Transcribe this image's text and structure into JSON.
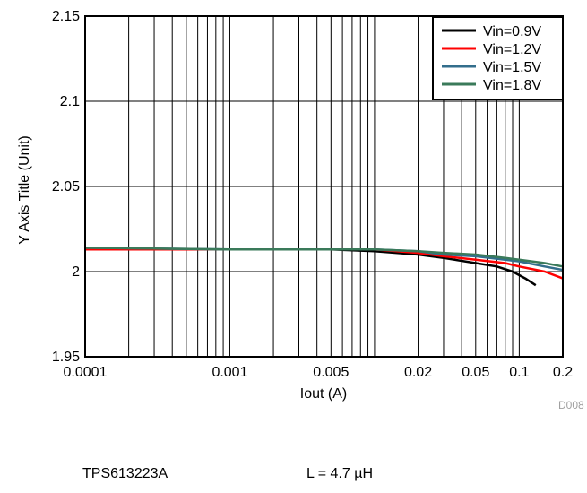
{
  "chart_data": {
    "type": "line",
    "x_scale": "log",
    "xlabel": "Iout (A)",
    "ylabel": "Y Axis Title (Unit)",
    "xlim": [
      0.0001,
      0.2
    ],
    "ylim": [
      1.95,
      2.15
    ],
    "x_ticks": [
      0.0001,
      0.001,
      0.005,
      0.02,
      0.05,
      0.1,
      0.2
    ],
    "x_tick_labels": [
      "0.0001",
      "0.001",
      "0.005",
      "0.02",
      "0.05",
      "0.1",
      "0.2"
    ],
    "y_ticks": [
      1.95,
      2,
      2.05,
      2.1,
      2.15
    ],
    "y_tick_labels": [
      "1.95",
      "2",
      "2.05",
      "2.1",
      "2.15"
    ],
    "grid": true,
    "legend_position": "top-right",
    "watermark": "D008",
    "series": [
      {
        "name": "Vin=0.9V",
        "color": "#000000",
        "x": [
          0.0001,
          0.001,
          0.005,
          0.01,
          0.02,
          0.03,
          0.05,
          0.07,
          0.09,
          0.11,
          0.13
        ],
        "y": [
          2.013,
          2.013,
          2.013,
          2.012,
          2.01,
          2.008,
          2.005,
          2.003,
          2.0,
          1.996,
          1.992
        ]
      },
      {
        "name": "Vin=1.2V",
        "color": "#ff0000",
        "x": [
          0.0001,
          0.001,
          0.005,
          0.01,
          0.02,
          0.03,
          0.05,
          0.08,
          0.1,
          0.15,
          0.2
        ],
        "y": [
          2.013,
          2.013,
          2.013,
          2.013,
          2.011,
          2.009,
          2.007,
          2.005,
          2.003,
          2.0,
          1.996
        ]
      },
      {
        "name": "Vin=1.5V",
        "color": "#336e8c",
        "x": [
          0.0001,
          0.001,
          0.005,
          0.01,
          0.02,
          0.03,
          0.05,
          0.08,
          0.1,
          0.15,
          0.2
        ],
        "y": [
          2.014,
          2.013,
          2.013,
          2.013,
          2.012,
          2.01,
          2.009,
          2.007,
          2.006,
          2.003,
          2.001
        ]
      },
      {
        "name": "Vin=1.8V",
        "color": "#3a7a5a",
        "x": [
          0.0001,
          0.001,
          0.005,
          0.01,
          0.02,
          0.03,
          0.05,
          0.08,
          0.1,
          0.15,
          0.2
        ],
        "y": [
          2.014,
          2.013,
          2.013,
          2.013,
          2.012,
          2.011,
          2.01,
          2.008,
          2.007,
          2.005,
          2.003
        ]
      }
    ]
  },
  "captions": {
    "device": "TPS613223A",
    "inductor": "L = 4.7 µH"
  }
}
